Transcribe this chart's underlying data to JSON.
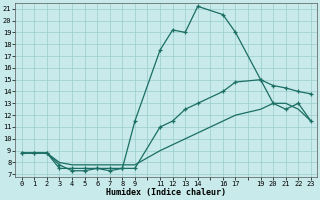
{
  "xlabel": "Humidex (Indice chaleur)",
  "bg_color": "#c8eaea",
  "grid_color": "#99cccc",
  "line_color": "#1a6e64",
  "xlim": [
    -0.5,
    23.5
  ],
  "ylim": [
    6.8,
    21.5
  ],
  "ytick_vals": [
    7,
    8,
    9,
    10,
    11,
    12,
    13,
    14,
    15,
    16,
    17,
    18,
    19,
    20,
    21
  ],
  "xtick_vals": [
    0,
    1,
    2,
    3,
    4,
    5,
    6,
    7,
    8,
    9,
    11,
    12,
    13,
    14,
    16,
    17,
    19,
    20,
    21,
    22,
    23
  ],
  "line_top_x": [
    0,
    1,
    2,
    3,
    4,
    5,
    6,
    7,
    8,
    9,
    11,
    12,
    13,
    14,
    16,
    17,
    19,
    20,
    21,
    22,
    23
  ],
  "line_top_y": [
    8.8,
    8.8,
    8.8,
    7.5,
    7.5,
    7.5,
    7.5,
    7.5,
    7.5,
    11.5,
    17.5,
    19.2,
    19.0,
    21.2,
    20.5,
    19.0,
    15.0,
    13.0,
    12.5,
    13.0,
    11.5
  ],
  "line_mid_x": [
    0,
    1,
    2,
    3,
    4,
    5,
    6,
    7,
    8,
    9,
    11,
    12,
    13,
    14,
    16,
    17,
    19,
    20,
    21,
    22,
    23
  ],
  "line_mid_y": [
    8.8,
    8.8,
    8.8,
    7.8,
    7.3,
    7.3,
    7.5,
    7.3,
    7.5,
    7.5,
    11.0,
    11.5,
    12.5,
    13.0,
    14.0,
    14.8,
    15.0,
    14.5,
    14.3,
    14.0,
    13.8
  ],
  "line_bot_x": [
    0,
    1,
    2,
    3,
    4,
    5,
    6,
    7,
    8,
    9,
    11,
    12,
    13,
    14,
    16,
    17,
    19,
    20,
    21,
    22,
    23
  ],
  "line_bot_y": [
    8.8,
    8.8,
    8.8,
    8.0,
    7.8,
    7.8,
    7.8,
    7.8,
    7.8,
    7.8,
    9.0,
    9.5,
    10.0,
    10.5,
    11.5,
    12.0,
    12.5,
    13.0,
    13.0,
    12.5,
    11.5
  ]
}
